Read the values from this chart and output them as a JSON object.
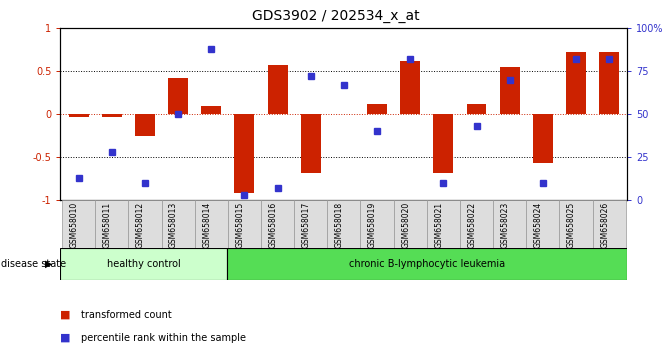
{
  "title": "GDS3902 / 202534_x_at",
  "samples": [
    "GSM658010",
    "GSM658011",
    "GSM658012",
    "GSM658013",
    "GSM658014",
    "GSM658015",
    "GSM658016",
    "GSM658017",
    "GSM658018",
    "GSM658019",
    "GSM658020",
    "GSM658021",
    "GSM658022",
    "GSM658023",
    "GSM658024",
    "GSM658025",
    "GSM658026"
  ],
  "transformed_count": [
    -0.03,
    -0.03,
    -0.26,
    0.42,
    0.1,
    -0.92,
    0.57,
    -0.68,
    0.0,
    0.12,
    0.62,
    -0.68,
    0.12,
    0.55,
    -0.57,
    0.72,
    0.72
  ],
  "percentile_rank": [
    13,
    28,
    10,
    50,
    88,
    3,
    7,
    72,
    67,
    40,
    82,
    10,
    43,
    70,
    10,
    82,
    82
  ],
  "bar_color": "#cc2200",
  "dot_color": "#3333cc",
  "healthy_count": 5,
  "disease_label_healthy": "healthy control",
  "disease_label_leukemia": "chronic B-lymphocytic leukemia",
  "disease_state_label": "disease state",
  "legend_bar": "transformed count",
  "legend_dot": "percentile rank within the sample",
  "healthy_bg": "#ccffcc",
  "leukemia_bg": "#55dd55",
  "left_tick_color": "#cc2200",
  "right_tick_color": "#3333cc",
  "ylim_left": [
    -1,
    1
  ],
  "ylim_right": [
    0,
    100
  ],
  "yticks_left": [
    -1,
    -0.5,
    0,
    0.5,
    1
  ],
  "ytick_labels_left": [
    "-1",
    "-0.5",
    "0",
    "0.5",
    "1"
  ],
  "yticks_right": [
    0,
    25,
    50,
    75,
    100
  ],
  "ytick_labels_right": [
    "0",
    "25",
    "50",
    "75",
    "100%"
  ],
  "bar_width": 0.6,
  "dot_size": 4.5,
  "sample_box_color": "#dddddd",
  "sample_box_edge": "#999999"
}
